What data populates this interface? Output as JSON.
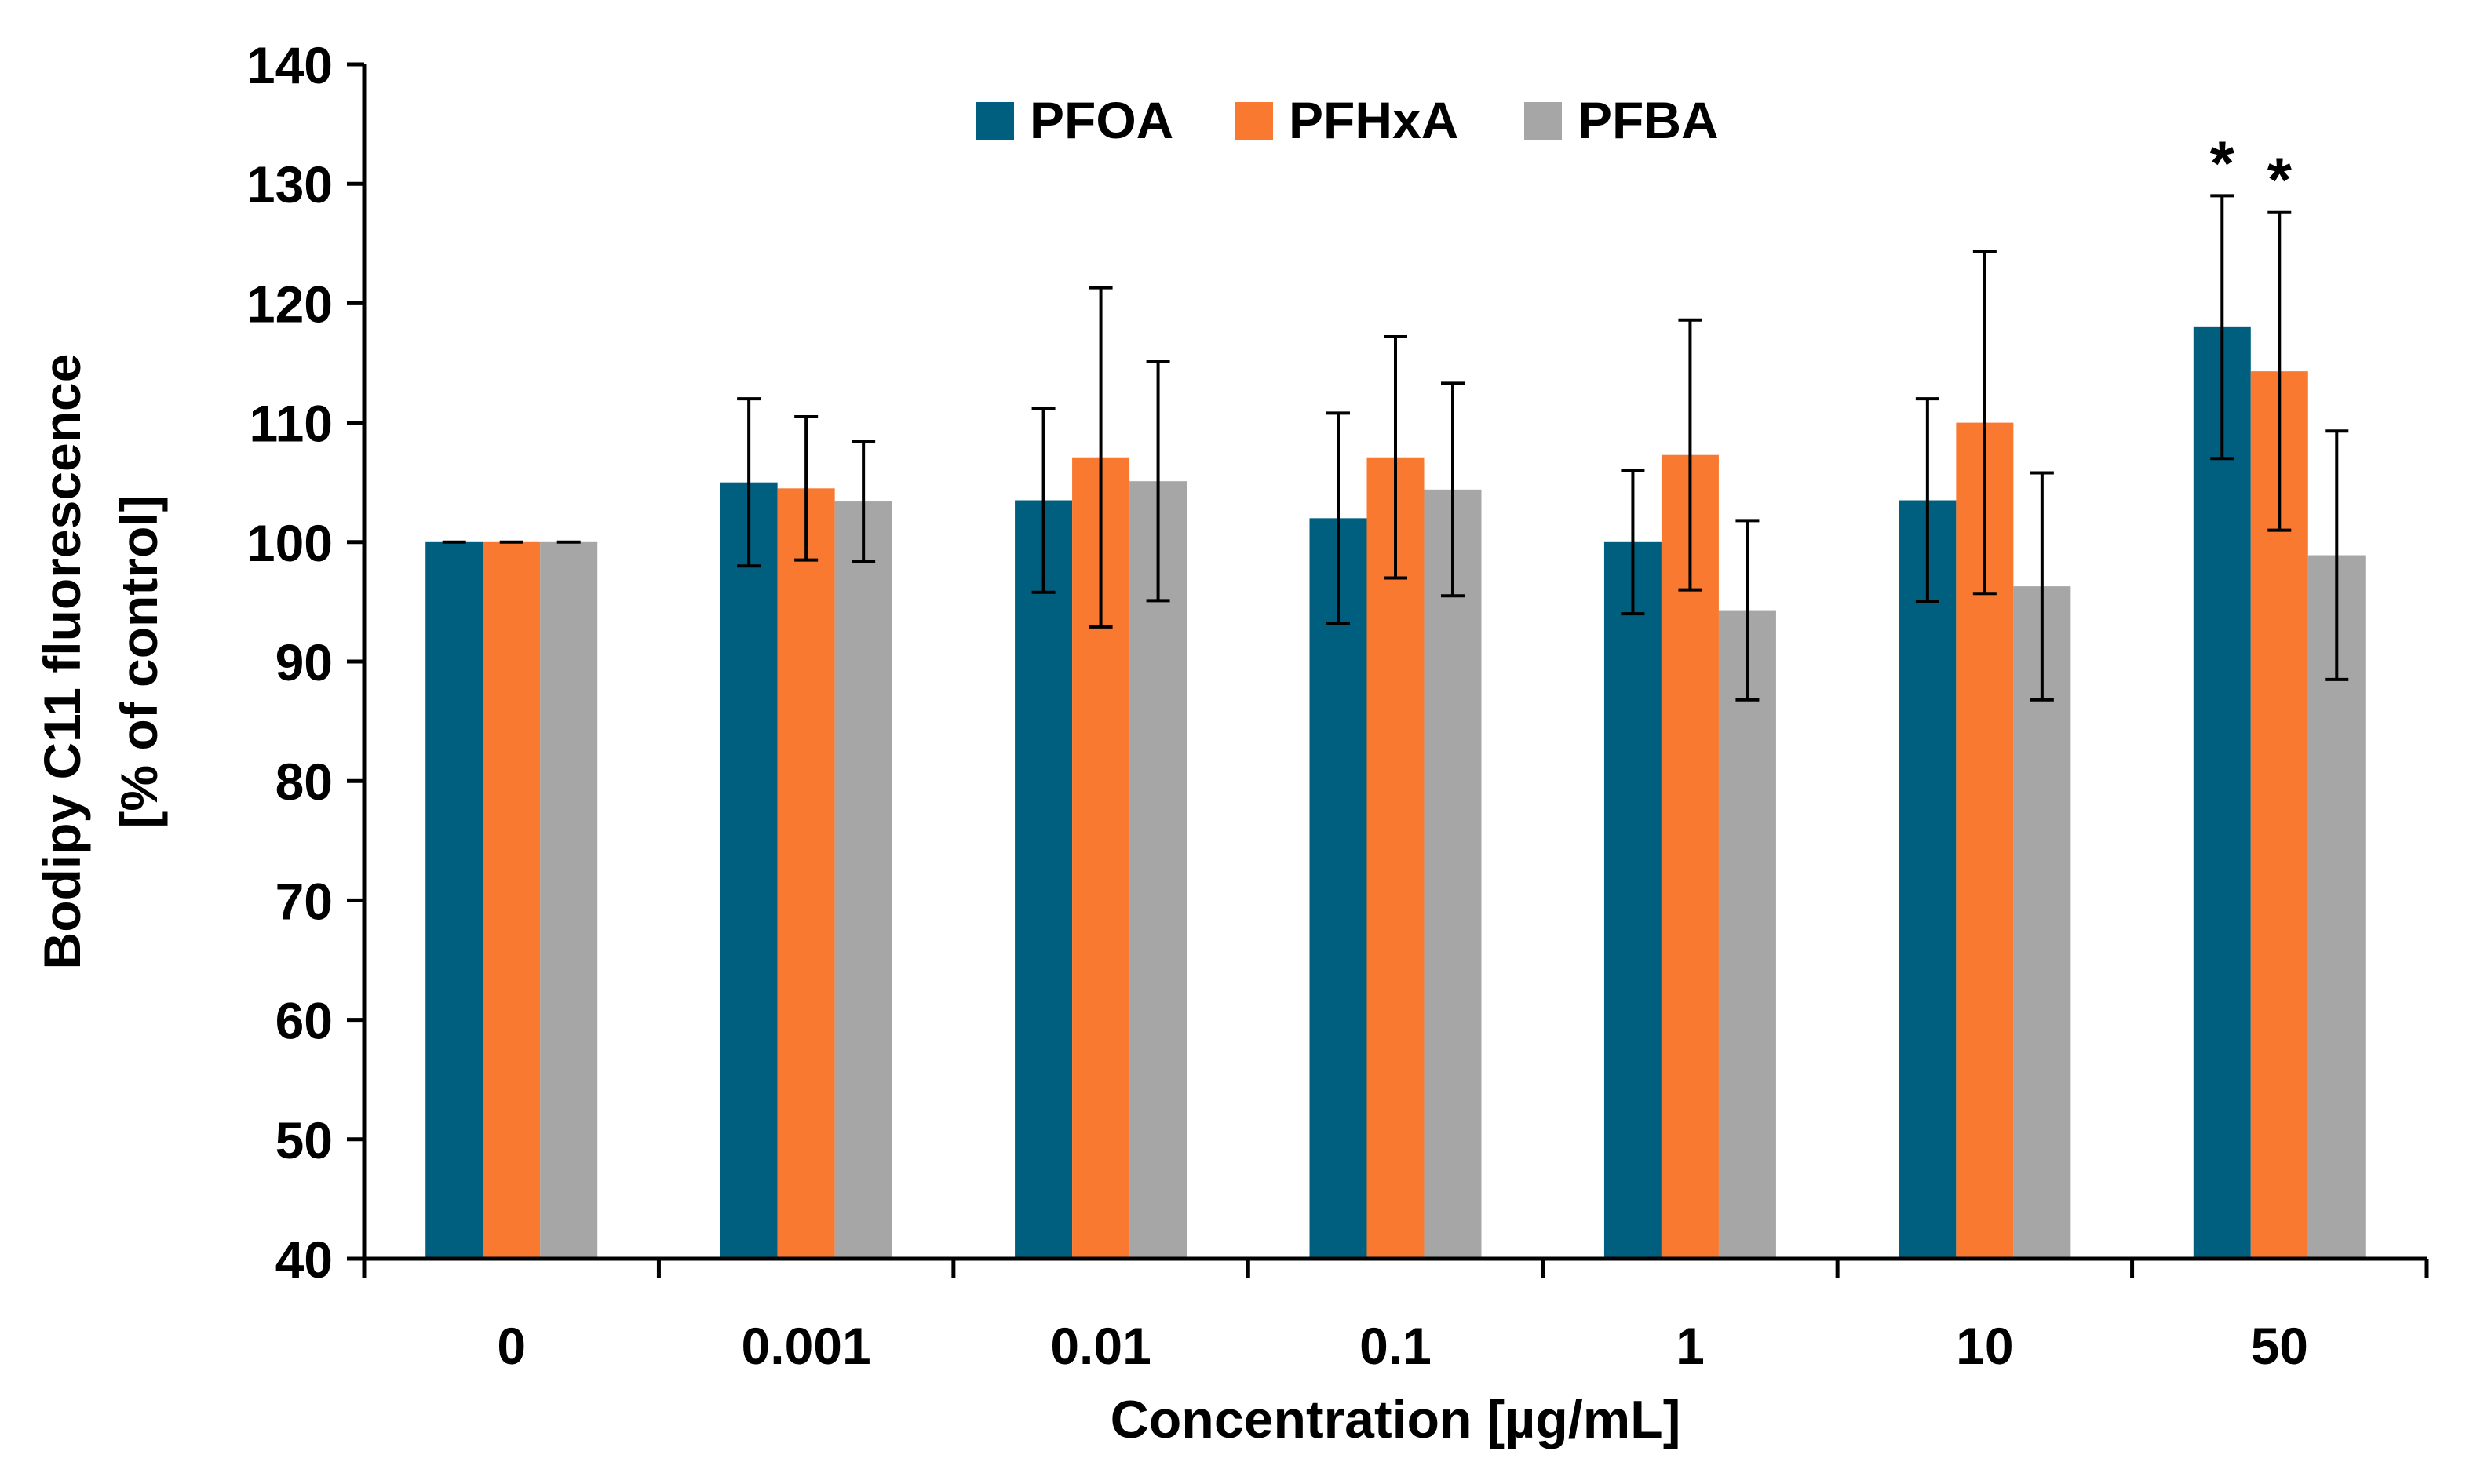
{
  "chart_data": {
    "type": "bar",
    "title": "",
    "xlabel": "Concentration [µg/mL]",
    "ylabel_line1": "Bodipy C11 fluorescence",
    "ylabel_line2": "[% of control]",
    "ylim": [
      40,
      140
    ],
    "yticks": [
      40,
      50,
      60,
      70,
      80,
      90,
      100,
      110,
      120,
      130,
      140
    ],
    "grid": false,
    "legend_position": "top-center",
    "categories": [
      "0",
      "0.001",
      "0.01",
      "0.1",
      "1",
      "10",
      "50"
    ],
    "series": [
      {
        "name": "PFOA",
        "color": "#005f7f",
        "values": [
          100,
          105,
          103.5,
          102,
          100,
          103.5,
          118
        ],
        "error": [
          0,
          7,
          7.7,
          8.8,
          6,
          8.5,
          11
        ]
      },
      {
        "name": "PFHxA",
        "color": "#f97930",
        "values": [
          100,
          104.5,
          107.1,
          107.1,
          107.3,
          110,
          114.3
        ],
        "error": [
          0,
          6,
          14.2,
          10.1,
          11.3,
          14.3,
          13.3
        ]
      },
      {
        "name": "PFBA",
        "color": "#a6a6a6",
        "values": [
          100,
          103.4,
          105.1,
          104.4,
          94.3,
          96.3,
          98.9
        ],
        "error": [
          0,
          5,
          10,
          8.9,
          7.5,
          9.5,
          10.4
        ]
      }
    ],
    "annotations": [
      {
        "text": "*",
        "category": "50",
        "series": "PFOA"
      },
      {
        "text": "*",
        "category": "50",
        "series": "PFHxA"
      }
    ]
  }
}
